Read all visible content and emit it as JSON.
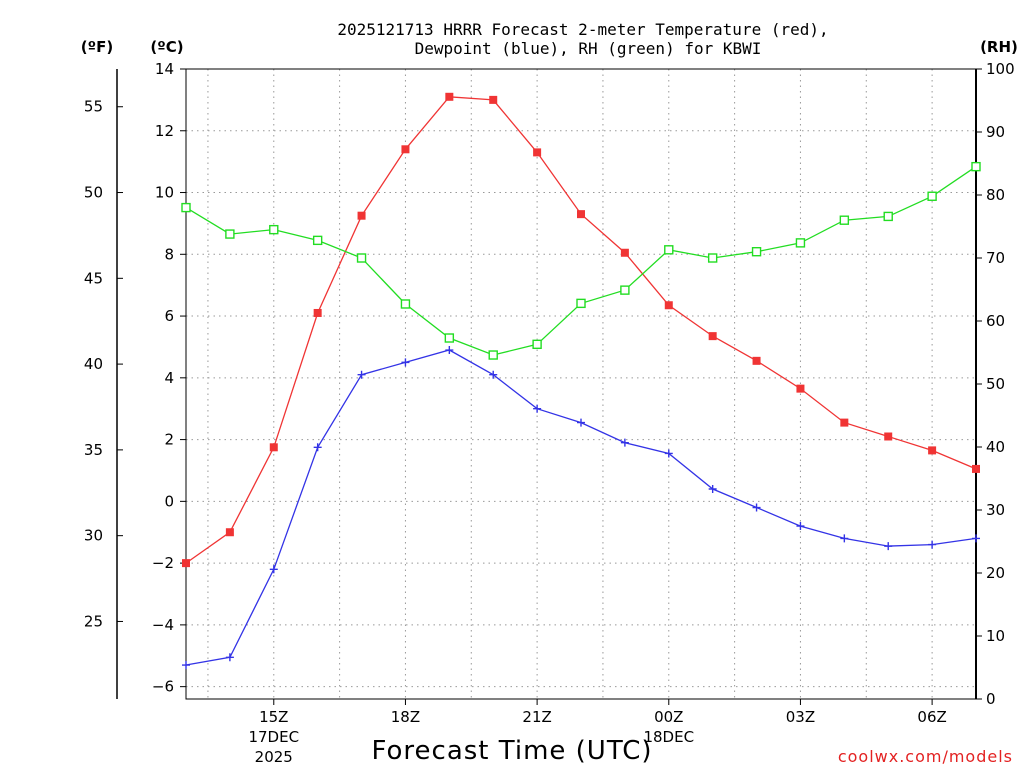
{
  "chart_data": {
    "type": "line",
    "title_line1": "2025121713 HRRR Forecast 2-meter Temperature (red),",
    "title_line2": "Dewpoint (blue), RH (green) for KBWI",
    "xlabel": "Forecast Time (UTC)",
    "credit": "coolwx.com/models",
    "units": {
      "fahrenheit": "(ºF)",
      "celsius": "(ºC)",
      "rh": "(RH)"
    },
    "x_range_hours": [
      13,
      31
    ],
    "x_ticks": [
      {
        "hour": 15,
        "label": "15Z",
        "date": "17DEC",
        "year": "2025"
      },
      {
        "hour": 18,
        "label": "18Z"
      },
      {
        "hour": 21,
        "label": "21Z"
      },
      {
        "hour": 24,
        "label": "00Z",
        "date": "18DEC"
      },
      {
        "hour": 27,
        "label": "03Z"
      },
      {
        "hour": 30,
        "label": "06Z"
      }
    ],
    "celsius_axis": {
      "min": -6.4,
      "max": 14,
      "ticks": [
        14,
        12,
        10,
        8,
        6,
        4,
        2,
        0,
        -2,
        -4,
        -6
      ]
    },
    "celsius_tick_labels": [
      "14",
      "12",
      "10",
      "8",
      "6",
      "4",
      "2",
      "0",
      "−2",
      "−4",
      "−6"
    ],
    "fahrenheit_ticks": [
      55,
      50,
      45,
      40,
      35,
      30,
      25
    ],
    "rh_axis": {
      "min": 0,
      "max": 100,
      "ticks": [
        100,
        90,
        80,
        70,
        60,
        50,
        40,
        30,
        20,
        10,
        0
      ]
    },
    "hours": [
      13,
      14,
      15,
      16,
      17,
      18,
      19,
      20,
      21,
      22,
      23,
      24,
      25,
      26,
      27,
      28,
      29,
      30,
      31
    ],
    "series": [
      {
        "name": "2-meter Temperature",
        "units": "C",
        "color": "#f03434",
        "marker": "filled-square",
        "values": [
          -2.0,
          -1.0,
          1.75,
          6.1,
          9.25,
          11.4,
          13.1,
          13.0,
          11.3,
          9.3,
          8.05,
          6.35,
          5.35,
          4.55,
          3.65,
          2.55,
          2.1,
          1.65,
          1.05
        ]
      },
      {
        "name": "Dewpoint",
        "units": "C",
        "color": "#3333e6",
        "marker": "plus",
        "values": [
          -5.3,
          -5.05,
          -2.2,
          1.75,
          4.1,
          4.5,
          4.9,
          4.1,
          3.0,
          2.55,
          1.9,
          1.55,
          0.4,
          -0.2,
          -0.8,
          -1.2,
          -1.45,
          -1.4,
          -1.2
        ]
      },
      {
        "name": "RH",
        "units": "%",
        "color": "#22dd22",
        "marker": "open-square",
        "values": [
          78.0,
          73.8,
          74.5,
          72.8,
          70.0,
          62.7,
          57.3,
          54.6,
          56.3,
          62.8,
          64.9,
          71.3,
          70.0,
          71.0,
          72.4,
          76.0,
          76.6,
          79.8,
          84.5
        ]
      }
    ]
  }
}
